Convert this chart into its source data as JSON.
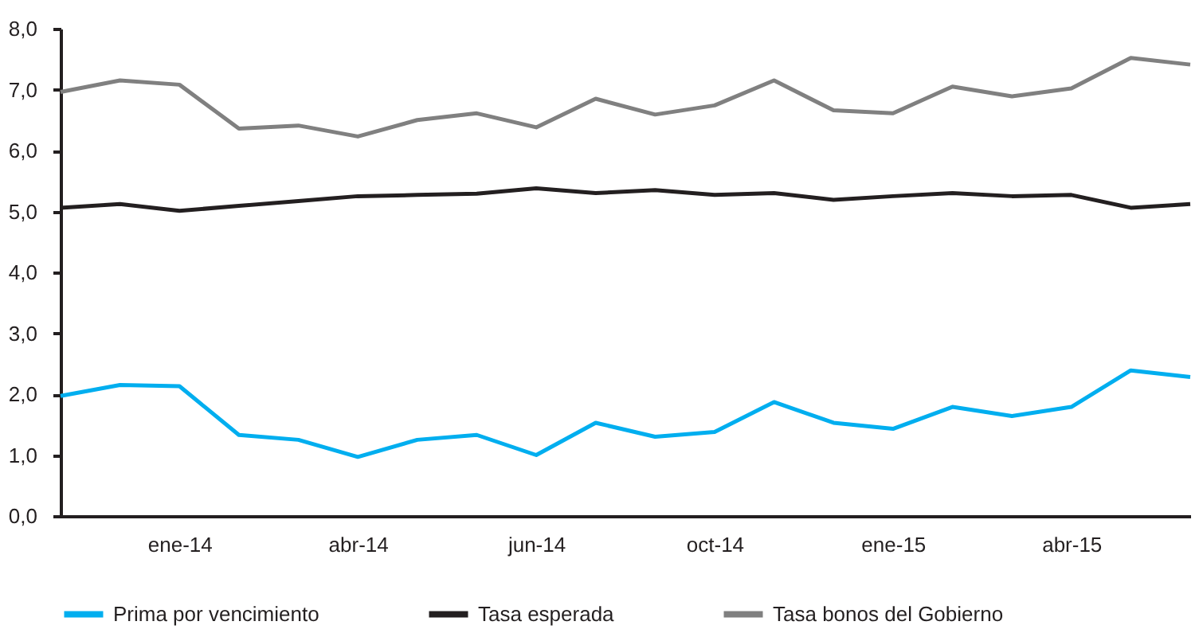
{
  "chart_data": {
    "type": "line",
    "categories": [
      null,
      null,
      "ene-14",
      null,
      null,
      "abr-14",
      null,
      null,
      "jun-14",
      null,
      null,
      "oct-14",
      null,
      null,
      "ene-15",
      null,
      null,
      "abr-15",
      null,
      null
    ],
    "series": [
      {
        "name": "Prima por vencimiento",
        "color": "#00aeef",
        "values": [
          1.97,
          2.15,
          2.13,
          1.33,
          1.25,
          0.97,
          1.25,
          1.33,
          1.0,
          1.53,
          1.3,
          1.38,
          1.87,
          1.53,
          1.43,
          1.79,
          1.64,
          1.79,
          2.39,
          2.28
        ]
      },
      {
        "name": "Tasa esperada",
        "color": "#231f20",
        "values": [
          5.06,
          5.12,
          5.01,
          5.09,
          5.17,
          5.25,
          5.27,
          5.29,
          5.38,
          5.3,
          5.35,
          5.27,
          5.3,
          5.19,
          5.25,
          5.3,
          5.25,
          5.27,
          5.06,
          5.12
        ]
      },
      {
        "name": "Tasa bonos del Gobierno",
        "color": "#808080",
        "values": [
          6.96,
          7.15,
          7.08,
          6.36,
          6.41,
          6.23,
          6.5,
          6.61,
          6.38,
          6.85,
          6.59,
          6.74,
          7.15,
          6.66,
          6.61,
          7.05,
          6.89,
          7.02,
          7.52,
          7.41
        ]
      }
    ],
    "ylim": [
      0,
      8
    ],
    "yticks": [
      {
        "value": 0,
        "label": "0,0"
      },
      {
        "value": 1,
        "label": "1,0"
      },
      {
        "value": 2,
        "label": "2,0"
      },
      {
        "value": 3,
        "label": "3,0"
      },
      {
        "value": 4,
        "label": "4,0"
      },
      {
        "value": 5,
        "label": "5,0"
      },
      {
        "value": 6,
        "label": "6,0"
      },
      {
        "value": 7,
        "label": "7,0"
      },
      {
        "value": 8,
        "label": "8,0"
      }
    ],
    "grid": false,
    "legend": "bottom",
    "line_style": "solid"
  }
}
